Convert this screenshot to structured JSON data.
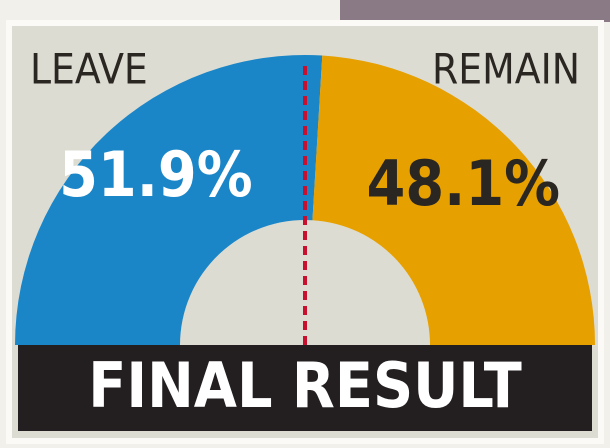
{
  "chart_data": {
    "type": "semi-donut",
    "title": "FINAL RESULT",
    "categories": [
      "LEAVE",
      "REMAIN"
    ],
    "values": [
      51.9,
      48.1
    ],
    "value_labels": [
      "51.9%",
      "48.1%"
    ],
    "colors": [
      "#1a86c8",
      "#e6a000"
    ],
    "label_colors": [
      "#ffffff",
      "#2a2622"
    ]
  }
}
